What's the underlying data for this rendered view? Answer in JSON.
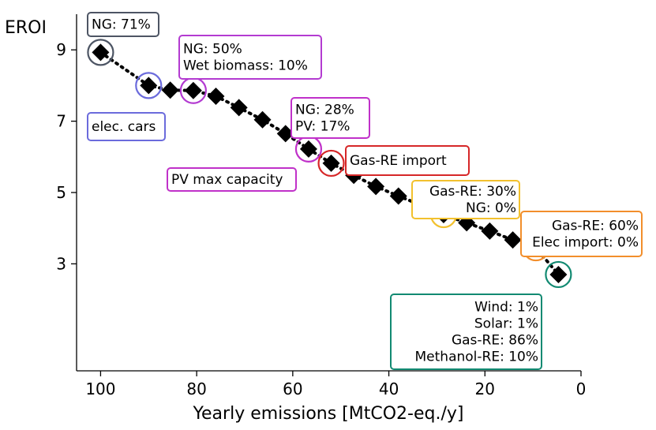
{
  "chart_data": {
    "type": "scatter",
    "title": "",
    "xlabel": "Yearly emissions [MtCO2-eq./y]",
    "ylabel": "EROI",
    "xlim": [
      105,
      0
    ],
    "ylim": [
      0.0,
      10.0
    ],
    "x_ticks": [
      100,
      80,
      60,
      40,
      20,
      0
    ],
    "x_tick_labels": [
      "100",
      "80",
      "60",
      "40",
      "20",
      "0"
    ],
    "y_ticks": [
      3,
      5,
      7,
      9
    ],
    "y_tick_labels": [
      "3",
      "5",
      "7",
      "9"
    ],
    "grid": false,
    "series": [
      {
        "points": [
          {
            "x": 100.0,
            "y": 8.93
          },
          {
            "x": 90.0,
            "y": 8.0
          },
          {
            "x": 85.5,
            "y": 7.87
          },
          {
            "x": 80.7,
            "y": 7.86
          },
          {
            "x": 76.0,
            "y": 7.7
          },
          {
            "x": 71.2,
            "y": 7.38
          },
          {
            "x": 66.3,
            "y": 7.04
          },
          {
            "x": 61.5,
            "y": 6.65
          },
          {
            "x": 56.7,
            "y": 6.22
          },
          {
            "x": 52.0,
            "y": 5.82
          },
          {
            "x": 47.3,
            "y": 5.48
          },
          {
            "x": 42.7,
            "y": 5.17
          },
          {
            "x": 38.0,
            "y": 4.9
          },
          {
            "x": 33.3,
            "y": 4.65
          },
          {
            "x": 28.6,
            "y": 4.38
          },
          {
            "x": 23.8,
            "y": 4.15
          },
          {
            "x": 19.0,
            "y": 3.92
          },
          {
            "x": 14.2,
            "y": 3.67
          },
          {
            "x": 9.4,
            "y": 3.45
          },
          {
            "x": 4.7,
            "y": 2.7
          }
        ]
      }
    ],
    "annotations": [
      {
        "x": 100.0,
        "y": 8.93,
        "color": "#4d5564",
        "lines": [
          "NG: 71%"
        ]
      },
      {
        "x": 90.0,
        "y": 8.0,
        "color": "#6b6bdc",
        "lines": [
          "elec. cars"
        ]
      },
      {
        "x": 80.7,
        "y": 7.86,
        "color": "#b33bd1",
        "lines": [
          "NG: 50%",
          "Wet biomass: 10%"
        ]
      },
      {
        "x": 56.7,
        "y": 6.22,
        "color": "#c031c9",
        "lines": [
          "NG: 28%",
          "PV: 17%"
        ]
      },
      {
        "x": 56.7,
        "y": 6.22,
        "color": "#c031c9",
        "lines": [
          "PV max capacity"
        ]
      },
      {
        "x": 52.0,
        "y": 5.82,
        "color": "#d62728",
        "lines": [
          "Gas-RE import"
        ]
      },
      {
        "x": 28.6,
        "y": 4.38,
        "color": "#f2c12e",
        "lines": [
          "Gas-RE: 30%",
          "NG: 0%"
        ]
      },
      {
        "x": 9.4,
        "y": 3.45,
        "color": "#f28e2b",
        "lines": [
          "Gas-RE: 60%",
          "Elec import: 0%"
        ]
      },
      {
        "x": 4.7,
        "y": 2.7,
        "color": "#128a72",
        "lines": [
          "Wind: 1%",
          "Solar: 1%",
          "Gas-RE: 86%",
          "Methanol-RE: 10%"
        ]
      }
    ]
  }
}
